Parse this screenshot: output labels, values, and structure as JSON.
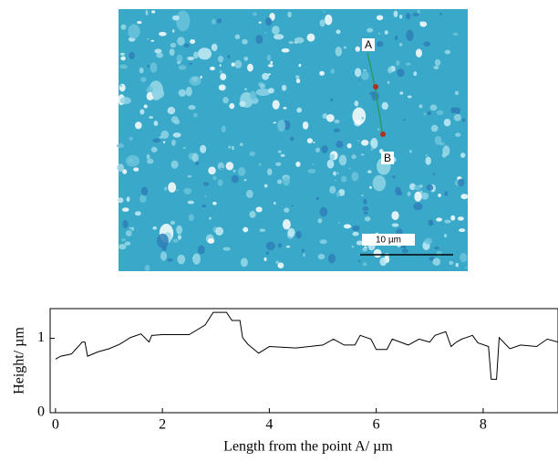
{
  "image": {
    "point_a": "A",
    "point_b": "B",
    "scale_bar": "10 µm"
  },
  "chart_data": {
    "type": "line",
    "xlabel": "Length from the point A/ µm",
    "ylabel": "Height/ µm",
    "x": [
      0,
      0.1,
      0.3,
      0.5,
      0.55,
      0.6,
      0.8,
      1.0,
      1.2,
      1.4,
      1.6,
      1.75,
      1.8,
      2.0,
      2.5,
      2.8,
      2.95,
      3.2,
      3.3,
      3.45,
      3.5,
      3.6,
      3.8,
      4.0,
      4.5,
      5.0,
      5.2,
      5.4,
      5.6,
      5.7,
      5.9,
      6.0,
      6.2,
      6.3,
      6.6,
      6.8,
      7.0,
      7.1,
      7.3,
      7.4,
      7.5,
      7.6,
      7.8,
      7.9,
      8.1,
      8.15,
      8.25,
      8.3,
      8.5,
      8.7,
      9.0,
      9.2,
      9.4
    ],
    "series": [
      {
        "color": "#000000",
        "values": [
          0.72,
          0.76,
          0.79,
          0.95,
          0.95,
          0.76,
          0.82,
          0.86,
          0.92,
          1.01,
          1.06,
          0.95,
          1.04,
          1.05,
          1.05,
          1.18,
          1.35,
          1.35,
          1.24,
          1.24,
          1.01,
          0.92,
          0.8,
          0.89,
          0.87,
          0.91,
          0.99,
          0.91,
          0.91,
          1.04,
          0.99,
          0.85,
          0.85,
          0.99,
          0.91,
          0.99,
          0.95,
          1.04,
          1.09,
          0.89,
          0.95,
          0.99,
          1.04,
          0.94,
          0.89,
          0.45,
          0.45,
          1.01,
          0.86,
          0.91,
          0.89,
          0.99,
          0.95
        ]
      }
    ],
    "xlim": [
      -0.1,
      9.4
    ],
    "ylim": [
      0,
      1.4
    ],
    "xticks": [
      0,
      2,
      4,
      6,
      8
    ],
    "yticks": [
      0,
      1
    ]
  }
}
